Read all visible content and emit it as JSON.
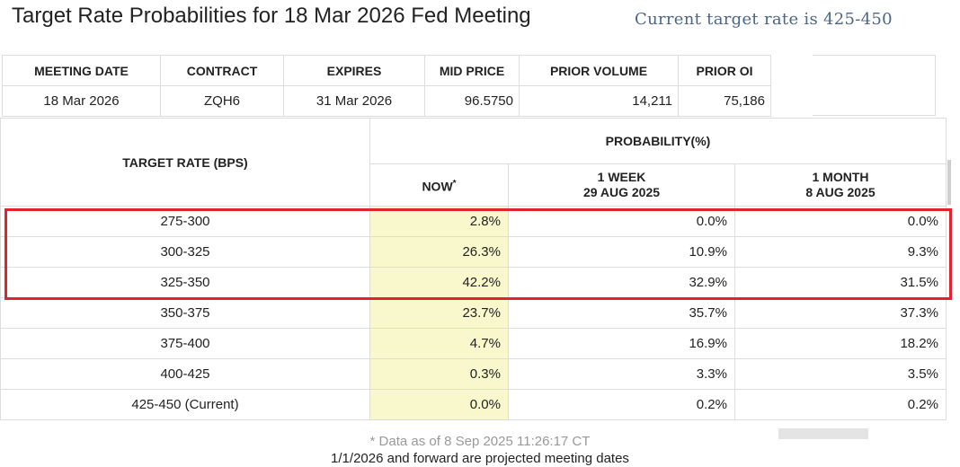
{
  "header": {
    "title": "Target Rate Probabilities for 18 Mar 2026 Fed Meeting",
    "current_rate": "Current target rate is 425-450"
  },
  "meeting_table": {
    "headers": [
      "MEETING DATE",
      "CONTRACT",
      "EXPIRES",
      "MID PRICE",
      "PRIOR VOLUME",
      "PRIOR OI"
    ],
    "row": [
      "18 Mar 2026",
      "ZQH6",
      "31 Mar 2026",
      "96.5750",
      "14,211",
      "75,186"
    ]
  },
  "prob_table": {
    "target_rate_header": "TARGET RATE (BPS)",
    "probability_header": "PROBABILITY(%)",
    "now_header": "NOW",
    "now_marker": "*",
    "week_header": "1 WEEK",
    "week_date": "29 AUG 2025",
    "month_header": "1 MONTH",
    "month_date": "8 AUG 2025",
    "rows": [
      {
        "rate": "275-300",
        "now": "2.8%",
        "week": "0.0%",
        "month": "0.0%"
      },
      {
        "rate": "300-325",
        "now": "26.3%",
        "week": "10.9%",
        "month": "9.3%"
      },
      {
        "rate": "325-350",
        "now": "42.2%",
        "week": "32.9%",
        "month": "31.5%"
      },
      {
        "rate": "350-375",
        "now": "23.7%",
        "week": "35.7%",
        "month": "37.3%"
      },
      {
        "rate": "375-400",
        "now": "4.7%",
        "week": "16.9%",
        "month": "18.2%"
      },
      {
        "rate": "400-425",
        "now": "0.3%",
        "week": "3.3%",
        "month": "3.5%"
      },
      {
        "rate": "425-450 (Current)",
        "now": "0.0%",
        "week": "0.2%",
        "month": "0.2%"
      }
    ]
  },
  "footer": {
    "data_as_of": "* Data as of 8 Sep 2025 11:26:17 CT",
    "projected_note": "1/1/2026 and forward are projected meeting dates"
  },
  "colors": {
    "highlight": "#e1232b",
    "now_column": "#f8f8cc",
    "current_rate_text": "#4a6588"
  }
}
